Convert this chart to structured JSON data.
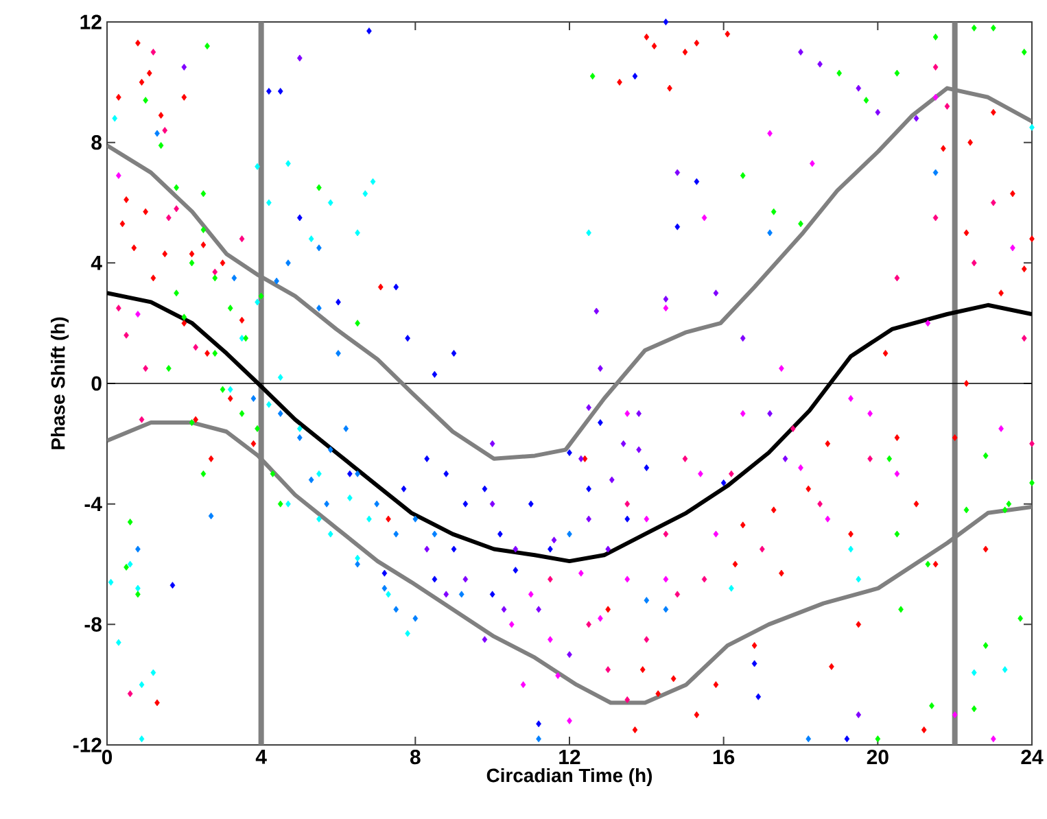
{
  "chart_data": {
    "type": "scatter",
    "xlabel": "Circadian Time (h)",
    "ylabel": "Phase Shift (h)",
    "xlim": [
      0,
      24
    ],
    "xticks": [
      0,
      4,
      8,
      12,
      16,
      20,
      24
    ],
    "ylim": [
      -12,
      12
    ],
    "yticks": [
      -12,
      -8,
      -4,
      0,
      4,
      8,
      12
    ],
    "marker": "diamond",
    "series": [
      {
        "color": "#ff0000",
        "x": [
          0.3,
          0.8,
          1.1,
          0.9,
          2.0,
          1.4,
          0.5,
          0.4,
          1.0,
          0.7,
          1.5,
          2.2,
          2.5,
          3.0,
          1.2,
          2.0,
          2.6,
          3.5,
          3.2,
          2.3,
          3.8,
          2.7,
          1.3,
          7.3,
          7.1,
          14,
          14.2,
          15.3,
          16.1,
          14.6,
          15,
          13.3,
          12.4,
          13,
          13.9,
          14.3,
          14.7,
          15.3,
          13.7,
          15.8,
          16.8,
          16.3,
          17.3,
          18.2,
          18.7,
          19.3,
          20.2,
          20.5,
          21.7,
          22.4,
          23,
          22.3,
          23.5,
          24,
          23.2,
          22.3,
          22,
          21,
          18.8,
          16.5,
          17.5,
          19.5,
          21.2,
          21.5,
          22.8,
          23.8
        ],
        "values": [
          9.5,
          11.3,
          10.3,
          10,
          9.5,
          8.9,
          6.1,
          5.3,
          5.7,
          4.5,
          4.3,
          4.3,
          4.6,
          4.0,
          3.5,
          2.0,
          1.0,
          2.1,
          -0.5,
          -1.2,
          -2.0,
          -2.5,
          -10.6,
          -4.5,
          3.2,
          11.5,
          11.2,
          11.3,
          11.6,
          9.8,
          11,
          10,
          -2.5,
          -7.5,
          -9.5,
          -10.3,
          -9.8,
          -11,
          -11.5,
          -10,
          -8.7,
          -6,
          -4.2,
          -3.5,
          -2,
          -5,
          1,
          -1.8,
          7.8,
          8,
          9,
          5,
          6.3,
          4.8,
          3,
          0,
          -1.8,
          -4,
          -9.4,
          -4.7,
          -6.3,
          -8,
          -11.5,
          -6,
          -5.5,
          3.8
        ]
      },
      {
        "color": "#ff0080",
        "x": [
          1.2,
          1.5,
          1.8,
          0.3,
          0.5,
          1.0,
          2.3,
          0.9,
          0.6,
          1.6,
          2.8,
          3.5,
          11.5,
          12.5,
          13,
          13.5,
          14,
          14.8,
          15.5,
          16.2,
          17,
          17.8,
          18.5,
          15,
          19.8,
          20.5,
          21.5,
          22.5,
          23,
          23.8,
          24,
          21.8,
          21.5,
          13.5,
          14.5
        ],
        "values": [
          11,
          8.4,
          5.8,
          2.5,
          1.6,
          0.5,
          1.2,
          -1.2,
          -10.3,
          5.5,
          3.7,
          4.8,
          -6.5,
          -8,
          -9.5,
          -10.5,
          -8.5,
          -7,
          -6.5,
          -3,
          -5.5,
          -1.5,
          -4,
          -2.5,
          -2.5,
          3.5,
          5.5,
          4,
          6,
          1.5,
          -2,
          9.2,
          10.5,
          -4,
          -5
        ]
      },
      {
        "color": "#ff00ff",
        "x": [
          0.3,
          0.8,
          10.5,
          11,
          11.5,
          11.7,
          12.3,
          12.8,
          13.5,
          14,
          14.5,
          15.4,
          15.8,
          16.5,
          17.5,
          18,
          18.7,
          19.3,
          14.5,
          13.5,
          15.5,
          17.2,
          18.3,
          19.8,
          20.5,
          21.3,
          21.5,
          23.2,
          23.5,
          23,
          22,
          10.8,
          12
        ],
        "values": [
          6.9,
          2.3,
          -8,
          -7,
          -8.5,
          -9.7,
          -6.3,
          -7.8,
          -6.5,
          -4.5,
          -6.5,
          -3,
          -5,
          -1,
          0.5,
          -2.8,
          -4.5,
          -0.5,
          2.5,
          -1,
          5.5,
          8.3,
          7.3,
          -1,
          -3,
          2,
          9.5,
          -1.5,
          4.5,
          -11.8,
          -11,
          -10,
          -11.2
        ]
      },
      {
        "color": "#8000ff",
        "x": [
          8.3,
          8.8,
          9.3,
          9.8,
          10.3,
          10.6,
          11.2,
          11.6,
          12,
          12.5,
          13,
          13.4,
          13.8,
          12.8,
          12.5,
          13.8,
          14.8,
          15.8,
          16.5,
          17.2,
          17.6,
          18,
          18.5,
          19.5,
          20,
          21,
          12.7,
          14.5,
          13.1,
          10,
          10,
          2,
          5,
          12.3,
          19.5
        ],
        "values": [
          -5.5,
          -7,
          -6.5,
          -8.5,
          -7.5,
          -5.5,
          -7.5,
          -5.2,
          -9,
          -4.5,
          -5.5,
          -2,
          -1,
          0.5,
          -0.8,
          -2.2,
          7,
          3,
          1.5,
          -1,
          -2.5,
          11,
          10.6,
          9.8,
          9,
          8.8,
          2.4,
          2.8,
          -3.2,
          -2,
          -4,
          10.5,
          10.8,
          -2.5,
          -11
        ]
      },
      {
        "color": "#0000ff",
        "x": [
          6.8,
          4.2,
          4.5,
          7.5,
          7.8,
          9,
          8.5,
          8.3,
          8.8,
          9.3,
          9.8,
          10.2,
          10.6,
          9,
          8.5,
          10,
          11,
          11.5,
          12,
          12.8,
          12.5,
          14,
          13.5,
          16,
          14.5,
          13.7,
          15.3,
          14.8,
          19.2,
          16.9,
          16.8,
          11.2,
          7.2,
          7.7,
          6.3,
          1.7,
          6,
          5
        ],
        "values": [
          11.7,
          9.7,
          9.7,
          3.2,
          1.5,
          1,
          0.3,
          -2.5,
          -3,
          -4,
          -3.5,
          -5,
          -6.2,
          -5.5,
          -6.5,
          -7,
          -4,
          -5.5,
          -2.3,
          -1.3,
          -3.5,
          -2.8,
          -4.5,
          -3.3,
          12,
          10.2,
          6.7,
          5.2,
          -11.8,
          -10.4,
          -9.3,
          -11.3,
          -6.3,
          -3.5,
          -3,
          -6.7,
          2.7,
          5.5
        ]
      },
      {
        "color": "#0080ff",
        "x": [
          1.3,
          3.3,
          3.8,
          4.7,
          4.4,
          5.5,
          5.5,
          6,
          6.2,
          5.8,
          6.5,
          7,
          7.5,
          8,
          8.5,
          9.2,
          6.5,
          7.2,
          5,
          4.5,
          5.3,
          8,
          7.5,
          0.8,
          2.7,
          14,
          14.5,
          12,
          11.2,
          18.2,
          17.2,
          21.5,
          5.7
        ],
        "values": [
          8.3,
          3.5,
          -0.5,
          4,
          3.4,
          4.5,
          2.5,
          1,
          -1.5,
          -2.2,
          -3,
          -4,
          -5,
          -4.5,
          -5,
          -7,
          -6,
          -6.8,
          -1.8,
          -1,
          -3.2,
          -7.8,
          -7.5,
          -5.5,
          -4.4,
          -7.2,
          -7.5,
          -5,
          -11.8,
          -11.8,
          5,
          7,
          -4
        ]
      },
      {
        "color": "#00ffff",
        "x": [
          0.2,
          4.7,
          3.9,
          4.2,
          5.8,
          6.7,
          6.5,
          5.3,
          6.9,
          3.9,
          4.2,
          4.5,
          5,
          5.5,
          6.3,
          6.8,
          5.8,
          6.5,
          7.3,
          7.8,
          4.7,
          5.5,
          3.5,
          3.2,
          0.3,
          0.6,
          0.8,
          0.9,
          1.2,
          0.1,
          0.9,
          19.5,
          23.3,
          16.2,
          22.5,
          12.5,
          24,
          19.3
        ],
        "values": [
          8.8,
          7.3,
          7.2,
          6,
          6,
          6.3,
          5,
          4.8,
          6.7,
          2.7,
          -0.7,
          0.2,
          -1.5,
          -3,
          -3.8,
          -4.5,
          -5,
          -5.8,
          -7,
          -8.3,
          -4,
          -4.5,
          1.5,
          -0.2,
          -8.6,
          -6,
          -6.8,
          -10,
          -9.6,
          -6.6,
          -11.8,
          -6.5,
          -9.5,
          -6.8,
          -9.6,
          5,
          8.5,
          -5.5
        ]
      },
      {
        "color": "#00ff00",
        "x": [
          2.6,
          1,
          1.4,
          1.8,
          2.5,
          2.5,
          2.2,
          1.8,
          2.8,
          3.2,
          2,
          2.8,
          3.6,
          1.6,
          3,
          3.5,
          2.2,
          3.9,
          4.3,
          4.5,
          2.5,
          0.6,
          0.5,
          0.8,
          4,
          5.5,
          6.5,
          12.6,
          16.5,
          17.3,
          18,
          19,
          19.7,
          20.5,
          21.5,
          22.5,
          23,
          23.8,
          20.3,
          20.5,
          20.6,
          21.3,
          22.3,
          22.8,
          23.4,
          24,
          23.7,
          22.8,
          21.4,
          20,
          22.5,
          23.3
        ],
        "values": [
          11.2,
          9.4,
          7.9,
          6.5,
          6.3,
          5.1,
          4,
          3,
          3.5,
          2.5,
          2.2,
          1,
          1.5,
          0.5,
          -0.2,
          -1,
          -1.3,
          -1.5,
          -3,
          -4,
          -3,
          -4.6,
          -6.1,
          -7,
          2.9,
          6.5,
          2,
          10.2,
          6.9,
          5.7,
          5.3,
          10.3,
          9.4,
          10.3,
          11.5,
          11.8,
          11.8,
          11,
          -2.5,
          -5,
          -7.5,
          -6,
          -4.2,
          -2.4,
          -4,
          -3.3,
          -7.8,
          -8.7,
          -10.7,
          -11.8,
          -10.8,
          -4.2
        ]
      },
      {
        "type": "line",
        "color": "#808080",
        "marker": "none",
        "x": [
          0,
          1.14,
          2.21,
          3.1,
          3.92,
          4.88,
          5.95,
          7.02,
          7.9,
          8.97,
          10.04,
          11.1,
          11.9,
          12.9,
          13.96,
          15.03,
          15.92,
          16.8,
          18.06,
          18.95,
          20.01,
          20.9,
          21.8,
          22.86,
          24
        ],
        "values": [
          7.9,
          7.0,
          5.7,
          4.3,
          3.6,
          2.9,
          1.8,
          0.8,
          -0.3,
          -1.6,
          -2.5,
          -2.4,
          -2.2,
          -0.5,
          1.1,
          1.7,
          2.0,
          3.2,
          5.0,
          6.4,
          7.7,
          8.9,
          9.8,
          9.5,
          8.7
        ]
      },
      {
        "type": "line",
        "color": "#808080",
        "marker": "none",
        "x": [
          0,
          1.14,
          2.21,
          3.1,
          3.92,
          4.88,
          5.95,
          7.02,
          7.9,
          8.97,
          10.04,
          11.1,
          12.18,
          13.07,
          13.96,
          15.03,
          16.1,
          17.17,
          18.59,
          20.01,
          21.8,
          22.86,
          24
        ],
        "values": [
          -1.9,
          -1.3,
          -1.3,
          -1.6,
          -2.4,
          -3.7,
          -4.8,
          -5.9,
          -6.6,
          -7.5,
          -8.4,
          -9.1,
          -10.0,
          -10.6,
          -10.6,
          -10.0,
          -8.7,
          -8.0,
          -7.3,
          -6.8,
          -5.3,
          -4.3,
          -4.1
        ]
      },
      {
        "type": "line",
        "color": "#000000",
        "marker": "none",
        "x": [
          0,
          1.14,
          2.21,
          3.1,
          3.92,
          4.88,
          5.95,
          7.02,
          7.9,
          8.97,
          10.04,
          11.1,
          12.0,
          12.9,
          13.96,
          15.03,
          16.1,
          17.17,
          18.23,
          19.3,
          20.37,
          21.8,
          22.86,
          24
        ],
        "values": [
          3.0,
          2.7,
          2.0,
          1.0,
          0,
          -1.2,
          -2.3,
          -3.4,
          -4.3,
          -5.0,
          -5.5,
          -5.7,
          -5.9,
          -5.7,
          -5.0,
          -4.3,
          -3.4,
          -2.3,
          -0.9,
          0.9,
          1.8,
          2.3,
          2.6,
          2.3
        ]
      }
    ],
    "ref_lines": [
      {
        "axis": "x",
        "value": 4,
        "color": "#808080"
      },
      {
        "axis": "x",
        "value": 22,
        "color": "#808080"
      },
      {
        "axis": "y",
        "value": 0,
        "color": "#000000"
      }
    ]
  }
}
